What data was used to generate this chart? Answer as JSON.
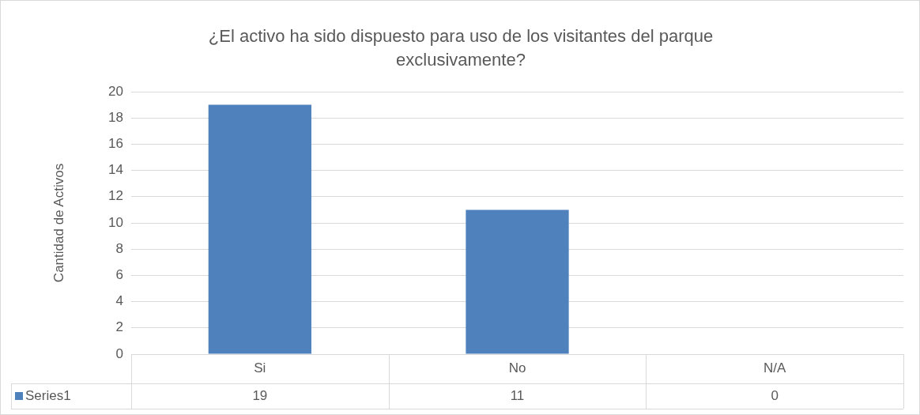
{
  "chart_data": {
    "type": "bar",
    "title": "¿El activo ha sido dispuesto para uso de los visitantes del parque exclusivamente?",
    "ylabel": "Cantidad de Activos",
    "categories": [
      "Si",
      "No",
      "N/A"
    ],
    "series": [
      {
        "name": "Series1",
        "color": "#4f81bd",
        "values": [
          19,
          11,
          0
        ]
      }
    ],
    "ylim": [
      0,
      20
    ],
    "yticks": [
      0,
      2,
      4,
      6,
      8,
      10,
      12,
      14,
      16,
      18,
      20
    ],
    "grid": "y",
    "data_labels": true
  }
}
